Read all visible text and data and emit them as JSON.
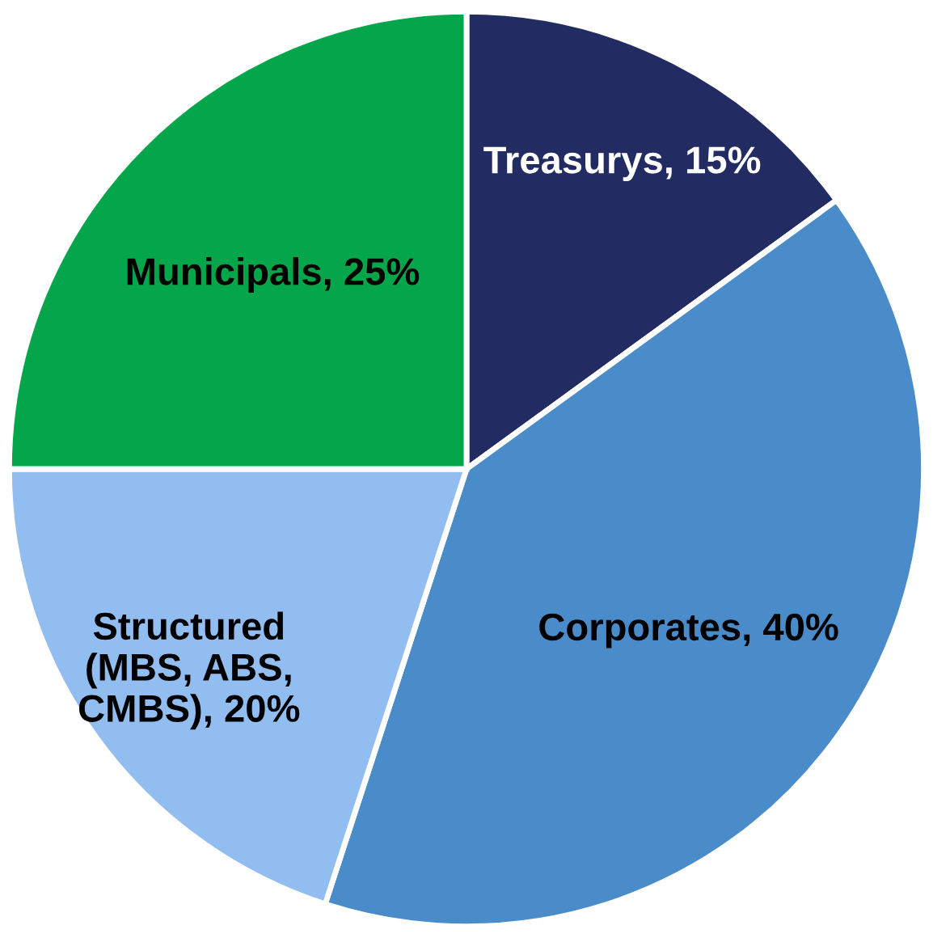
{
  "chart_data": {
    "type": "pie",
    "categories": [
      "Treasurys",
      "Corporates",
      "Structured (MBS, ABS, CMBS)",
      "Municipals"
    ],
    "values": [
      15,
      40,
      20,
      25
    ],
    "colors": [
      "#232c62",
      "#4a8cc9",
      "#92bdf0",
      "#05a64b"
    ],
    "value_labels": [
      "15%",
      "40%",
      "20%",
      "25%"
    ],
    "legend": false
  }
}
